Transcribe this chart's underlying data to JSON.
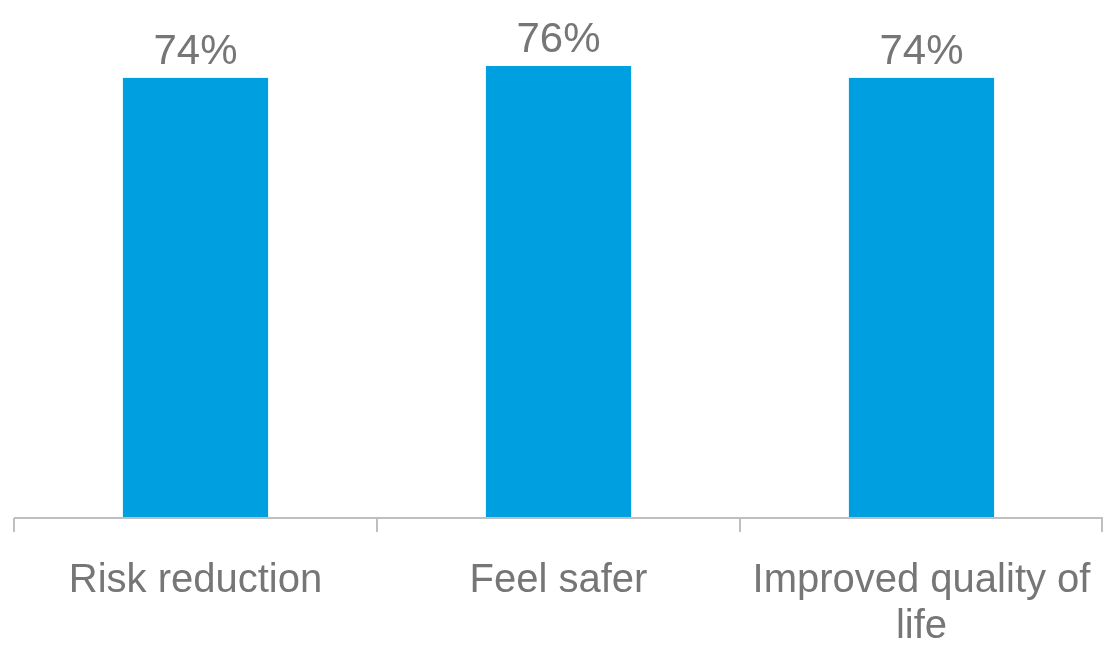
{
  "chart_data": {
    "type": "bar",
    "categories": [
      "Risk reduction",
      "Feel safer",
      "Improved quality of life"
    ],
    "values": [
      74,
      76,
      74
    ],
    "color": "#009fe0",
    "value_labels": [
      "74%",
      "76%",
      "74%"
    ]
  }
}
